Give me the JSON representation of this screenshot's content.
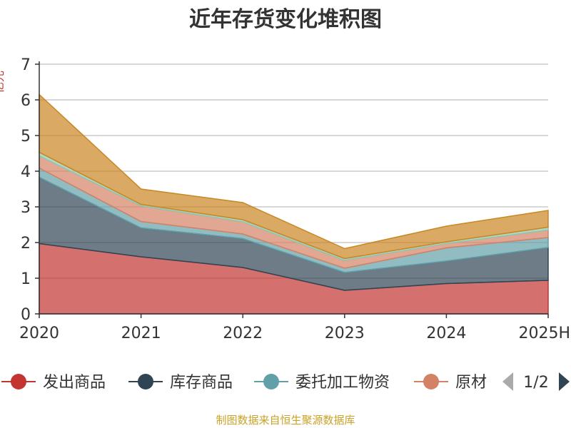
{
  "chart_data": {
    "type": "area",
    "stacked": true,
    "title": "近年存货变化堆积图",
    "x": [
      "2020",
      "2021",
      "2022",
      "2023",
      "2024",
      "2025H"
    ],
    "ylim": [
      0,
      7
    ],
    "yticks": [
      0,
      1,
      2,
      3,
      4,
      5,
      6,
      7
    ],
    "grid": true,
    "ylabel": "亿元",
    "series": [
      {
        "name": "发出商品",
        "color": "#c23531",
        "values": [
          1.97,
          1.6,
          1.3,
          0.66,
          0.85,
          0.94
        ]
      },
      {
        "name": "库存商品",
        "color": "#2f4554",
        "values": [
          1.86,
          0.81,
          0.81,
          0.5,
          0.63,
          0.92
        ]
      },
      {
        "name": "委托加工物资",
        "color": "#61a0a8",
        "values": [
          0.26,
          0.18,
          0.13,
          0.12,
          0.37,
          0.28
        ]
      },
      {
        "name": "原材料",
        "color": "#d48265",
        "values": [
          0.34,
          0.44,
          0.34,
          0.22,
          0.12,
          0.21
        ]
      },
      {
        "name": "",
        "color": "#91c7ae",
        "values": [
          0.1,
          0.04,
          0.06,
          0.05,
          0.05,
          0.08
        ]
      },
      {
        "name": "",
        "color": "#ca8622",
        "values": [
          1.62,
          0.43,
          0.48,
          0.28,
          0.44,
          0.47
        ]
      }
    ],
    "legend": {
      "position": "bottom",
      "visible_items": [
        "发出商品",
        "库存商品",
        "委托加工物资",
        "原材"
      ],
      "page": "1/2"
    }
  },
  "footer": "制图数据来自恒生聚源数据库"
}
